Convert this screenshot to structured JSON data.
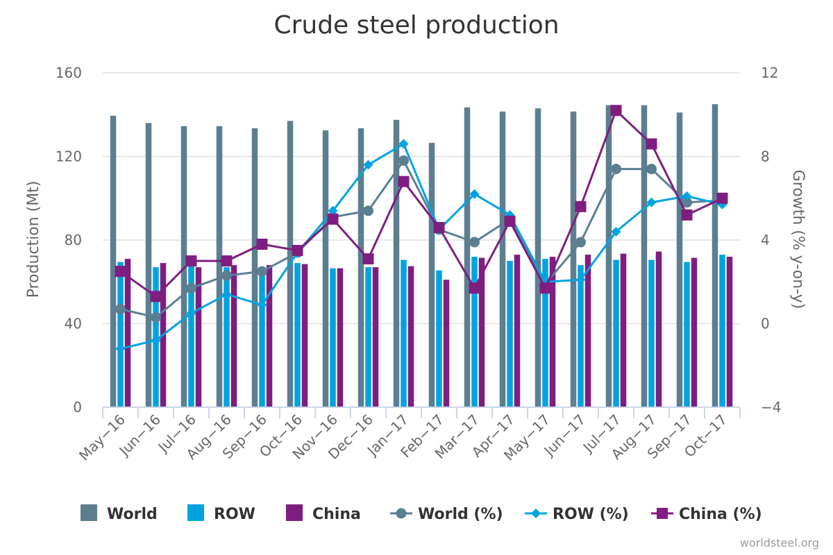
{
  "chart_data": {
    "type": "bar",
    "title": "Crude steel production",
    "ylabel": "Production (Mt)",
    "y2label": "Growth (% y-on-y)",
    "ylim": [
      0,
      160
    ],
    "y2lim": [
      -4,
      12
    ],
    "yticks": [
      0,
      40,
      80,
      120,
      160
    ],
    "y2ticks": [
      -4,
      0,
      4,
      8,
      12
    ],
    "y_tick_labels": [
      "0",
      "40",
      "80",
      "120",
      "160"
    ],
    "y2_tick_labels": [
      "−4",
      "0",
      "4",
      "8",
      "12"
    ],
    "grid": true,
    "legend_position": "bottom",
    "categories": [
      "May-16",
      "Jun-16",
      "Jul-16",
      "Aug-16",
      "Sep-16",
      "Oct-16",
      "Nov-16",
      "Dec-16",
      "Jan-17",
      "Feb-17",
      "Mar-17",
      "Apr-17",
      "May-17",
      "Jun-17",
      "Jul-17",
      "Aug-17",
      "Sep-17",
      "Oct-17"
    ],
    "category_labels": [
      "May−16",
      "Jun−16",
      "Jul−16",
      "Aug−16",
      "Sep−16",
      "Oct−16",
      "Nov−16",
      "Dec−16",
      "Jan−17",
      "Feb−17",
      "Mar−17",
      "Apr−17",
      "May−17",
      "Jun−17",
      "Jul−17",
      "Aug−17",
      "Sep−17",
      "Oct−17"
    ],
    "bar_series": [
      {
        "name": "World",
        "color": "#5b7f91",
        "values": [
          139.5,
          136,
          134.5,
          134.5,
          133.5,
          137,
          132.5,
          133.5,
          137.5,
          126.5,
          143.5,
          141.5,
          143,
          141.5,
          144.5,
          144.5,
          141,
          145
        ]
      },
      {
        "name": "ROW",
        "color": "#00a3e0",
        "values": [
          69.5,
          67,
          67.5,
          67,
          65.5,
          69,
          66.5,
          67,
          70.5,
          65.5,
          72,
          70,
          71,
          68,
          70.5,
          70.5,
          69.5,
          73
        ]
      },
      {
        "name": "China",
        "color": "#7f1d80",
        "values": [
          71,
          69,
          67,
          68,
          68,
          68.5,
          66.5,
          67,
          67.5,
          61,
          71.5,
          73,
          72,
          73,
          73.5,
          74.5,
          71.5,
          72
        ]
      }
    ],
    "line_series": [
      {
        "name": "World (%)",
        "color": "#5b7f91",
        "marker": "circle",
        "values": [
          0.7,
          0.3,
          1.7,
          2.3,
          2.5,
          3.4,
          5.1,
          5.4,
          7.8,
          4.5,
          3.9,
          5.0,
          1.9,
          3.9,
          7.4,
          7.4,
          5.8,
          5.9
        ]
      },
      {
        "name": "ROW (%)",
        "color": "#00a3e0",
        "marker": "diamond",
        "values": [
          -1.2,
          -0.8,
          0.5,
          1.4,
          0.9,
          3.4,
          5.4,
          7.6,
          8.6,
          4.5,
          6.2,
          5.2,
          2.0,
          2.1,
          4.4,
          5.8,
          6.1,
          5.7
        ]
      },
      {
        "name": "China (%)",
        "color": "#7f1d80",
        "marker": "square",
        "values": [
          2.5,
          1.3,
          3.0,
          3.0,
          3.8,
          3.5,
          5.0,
          3.1,
          6.8,
          4.6,
          1.7,
          4.9,
          1.7,
          5.6,
          10.2,
          8.6,
          5.2,
          6.0
        ]
      }
    ],
    "legend": {
      "items": [
        {
          "label": "World",
          "symbol": "bar",
          "color": "#5b7f91"
        },
        {
          "label": "ROW",
          "symbol": "bar",
          "color": "#00a3e0"
        },
        {
          "label": "China",
          "symbol": "bar",
          "color": "#7f1d80"
        },
        {
          "label": "World (%)",
          "symbol": "circle",
          "color": "#5b7f91"
        },
        {
          "label": "ROW (%)",
          "symbol": "diamond",
          "color": "#00a3e0"
        },
        {
          "label": "China (%)",
          "symbol": "square",
          "color": "#7f1d80"
        }
      ]
    }
  },
  "credit": "worldsteel.org"
}
